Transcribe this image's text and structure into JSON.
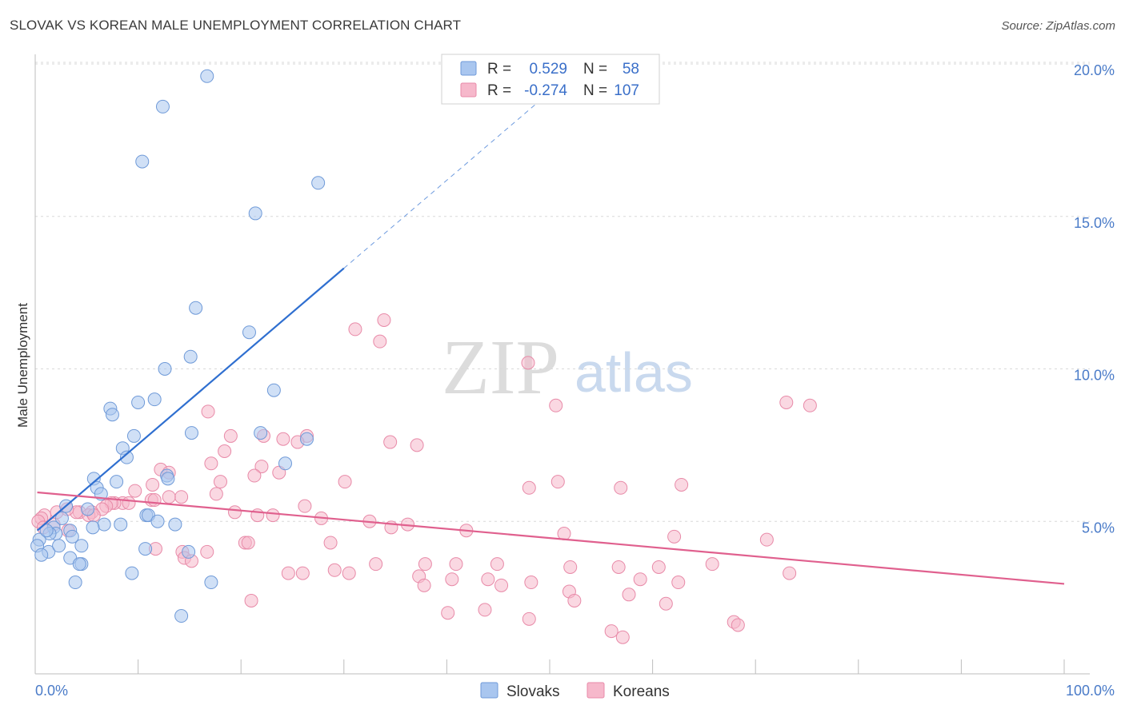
{
  "title": "SLOVAK VS KOREAN MALE UNEMPLOYMENT CORRELATION CHART",
  "source": "Source: ZipAtlas.com",
  "watermark": {
    "zip": "ZIP",
    "atlas": "atlas"
  },
  "legend": {
    "r_label": "R =",
    "n_label": "N =",
    "rows": [
      {
        "name": "Slovaks",
        "r": "0.529",
        "n": "58"
      },
      {
        "name": "Koreans",
        "r": "-0.274",
        "n": "107"
      }
    ]
  },
  "colors": {
    "slovaks_fill": "#a9c6ef",
    "slovaks_stroke": "#6f9ad8",
    "slovaks_line": "#2f6fd0",
    "koreans_fill": "#f6b8cb",
    "koreans_stroke": "#e88aa8",
    "koreans_line": "#e0608e",
    "grid": "#d9d9d9",
    "axis": "#bdbdbd",
    "tick_text": "#4a7bc8"
  },
  "chart_data": {
    "type": "scatter",
    "title": "SLOVAK VS KOREAN MALE UNEMPLOYMENT CORRELATION CHART",
    "xlabel": "",
    "ylabel": "Male Unemployment",
    "xlim": [
      0,
      100
    ],
    "ylim": [
      0,
      20
    ],
    "x_tick_labels": [
      "0.0%",
      "100.0%"
    ],
    "y_ticks": [
      {
        "value": 5,
        "label": "5.0%"
      },
      {
        "value": 10,
        "label": "10.0%"
      },
      {
        "value": 15,
        "label": "15.0%"
      },
      {
        "value": 20,
        "label": "20.0%"
      }
    ],
    "series": [
      {
        "name": "Slovaks",
        "r": 0.529,
        "n": 58,
        "trend": {
          "x0": 0.2,
          "y0": 4.7,
          "x1": 30,
          "y1": 13.3,
          "dash_to_x": 50
        },
        "points": [
          [
            16.7,
            19.6
          ],
          [
            12.4,
            18.6
          ],
          [
            10.4,
            16.8
          ],
          [
            27.5,
            16.1
          ],
          [
            21.4,
            15.1
          ],
          [
            15.6,
            12.0
          ],
          [
            20.8,
            11.2
          ],
          [
            15.1,
            10.4
          ],
          [
            12.6,
            10.0
          ],
          [
            23.2,
            9.3
          ],
          [
            11.6,
            9.0
          ],
          [
            10.0,
            8.9
          ],
          [
            7.3,
            8.7
          ],
          [
            7.5,
            8.5
          ],
          [
            15.2,
            7.9
          ],
          [
            21.9,
            7.9
          ],
          [
            26.4,
            7.7
          ],
          [
            9.6,
            7.8
          ],
          [
            8.5,
            7.4
          ],
          [
            8.9,
            7.1
          ],
          [
            24.3,
            6.9
          ],
          [
            12.8,
            6.5
          ],
          [
            12.9,
            6.4
          ],
          [
            5.7,
            6.4
          ],
          [
            7.9,
            6.3
          ],
          [
            6.0,
            6.1
          ],
          [
            6.4,
            5.9
          ],
          [
            3.0,
            5.5
          ],
          [
            5.1,
            5.4
          ],
          [
            2.6,
            5.1
          ],
          [
            10.8,
            5.2
          ],
          [
            11.0,
            5.2
          ],
          [
            11.9,
            5.0
          ],
          [
            13.6,
            4.9
          ],
          [
            6.7,
            4.9
          ],
          [
            8.3,
            4.9
          ],
          [
            1.8,
            4.8
          ],
          [
            3.4,
            4.7
          ],
          [
            2.0,
            4.6
          ],
          [
            3.6,
            4.5
          ],
          [
            1.4,
            4.6
          ],
          [
            5.6,
            4.8
          ],
          [
            0.4,
            4.4
          ],
          [
            0.2,
            4.2
          ],
          [
            1.3,
            4.0
          ],
          [
            2.3,
            4.2
          ],
          [
            4.5,
            4.2
          ],
          [
            14.9,
            4.0
          ],
          [
            10.7,
            4.1
          ],
          [
            3.4,
            3.8
          ],
          [
            4.5,
            3.6
          ],
          [
            0.6,
            3.9
          ],
          [
            4.3,
            3.6
          ],
          [
            9.4,
            3.3
          ],
          [
            3.9,
            3.0
          ],
          [
            17.1,
            3.0
          ],
          [
            14.2,
            1.9
          ],
          [
            1.1,
            4.7
          ]
        ]
      },
      {
        "name": "Koreans",
        "r": -0.274,
        "n": 107,
        "trend": {
          "x0": 0.2,
          "y0": 5.95,
          "x1": 100,
          "y1": 2.95
        },
        "points": [
          [
            33.9,
            11.6
          ],
          [
            31.1,
            11.3
          ],
          [
            33.5,
            10.9
          ],
          [
            47.9,
            10.2
          ],
          [
            50.6,
            8.8
          ],
          [
            73.0,
            8.9
          ],
          [
            75.3,
            8.8
          ],
          [
            16.8,
            8.6
          ],
          [
            19.0,
            7.8
          ],
          [
            22.2,
            7.8
          ],
          [
            26.4,
            7.8
          ],
          [
            24.1,
            7.7
          ],
          [
            25.5,
            7.6
          ],
          [
            34.5,
            7.6
          ],
          [
            37.1,
            7.5
          ],
          [
            18.4,
            7.3
          ],
          [
            17.1,
            6.9
          ],
          [
            22.0,
            6.8
          ],
          [
            12.2,
            6.7
          ],
          [
            13.0,
            6.6
          ],
          [
            23.7,
            6.6
          ],
          [
            21.3,
            6.5
          ],
          [
            18.0,
            6.3
          ],
          [
            11.4,
            6.2
          ],
          [
            30.1,
            6.3
          ],
          [
            50.8,
            6.3
          ],
          [
            62.8,
            6.2
          ],
          [
            48.0,
            6.1
          ],
          [
            56.9,
            6.1
          ],
          [
            9.7,
            6.0
          ],
          [
            14.2,
            5.8
          ],
          [
            17.6,
            5.9
          ],
          [
            13.0,
            5.8
          ],
          [
            11.3,
            5.7
          ],
          [
            11.6,
            5.7
          ],
          [
            8.5,
            5.6
          ],
          [
            9.1,
            5.6
          ],
          [
            7.7,
            5.6
          ],
          [
            7.4,
            5.6
          ],
          [
            6.9,
            5.5
          ],
          [
            6.5,
            5.4
          ],
          [
            5.5,
            5.3
          ],
          [
            4.3,
            5.3
          ],
          [
            4.0,
            5.3
          ],
          [
            5.2,
            5.2
          ],
          [
            5.7,
            5.2
          ],
          [
            3.1,
            5.4
          ],
          [
            2.1,
            5.3
          ],
          [
            0.9,
            5.2
          ],
          [
            0.6,
            5.1
          ],
          [
            0.3,
            5.0
          ],
          [
            0.8,
            4.8
          ],
          [
            1.8,
            4.9
          ],
          [
            3.2,
            4.7
          ],
          [
            26.2,
            5.5
          ],
          [
            19.4,
            5.3
          ],
          [
            21.6,
            5.2
          ],
          [
            23.1,
            5.2
          ],
          [
            27.8,
            5.1
          ],
          [
            32.5,
            5.0
          ],
          [
            36.2,
            4.9
          ],
          [
            34.6,
            4.8
          ],
          [
            41.9,
            4.7
          ],
          [
            51.4,
            4.6
          ],
          [
            62.1,
            4.5
          ],
          [
            71.1,
            4.4
          ],
          [
            20.4,
            4.3
          ],
          [
            20.7,
            4.3
          ],
          [
            16.7,
            4.0
          ],
          [
            14.3,
            4.0
          ],
          [
            11.7,
            4.1
          ],
          [
            28.7,
            4.3
          ],
          [
            33.1,
            3.6
          ],
          [
            37.9,
            3.6
          ],
          [
            40.9,
            3.6
          ],
          [
            44.9,
            3.6
          ],
          [
            52.0,
            3.5
          ],
          [
            56.7,
            3.5
          ],
          [
            60.6,
            3.5
          ],
          [
            65.8,
            3.6
          ],
          [
            14.5,
            3.8
          ],
          [
            15.2,
            3.7
          ],
          [
            24.6,
            3.3
          ],
          [
            26.0,
            3.3
          ],
          [
            29.1,
            3.4
          ],
          [
            30.5,
            3.3
          ],
          [
            37.3,
            3.2
          ],
          [
            40.5,
            3.1
          ],
          [
            44.0,
            3.1
          ],
          [
            48.2,
            3.0
          ],
          [
            58.8,
            3.1
          ],
          [
            62.5,
            3.0
          ],
          [
            73.3,
            3.3
          ],
          [
            37.8,
            2.9
          ],
          [
            45.3,
            2.9
          ],
          [
            51.9,
            2.7
          ],
          [
            57.7,
            2.6
          ],
          [
            52.4,
            2.4
          ],
          [
            61.3,
            2.3
          ],
          [
            21.0,
            2.4
          ],
          [
            43.7,
            2.1
          ],
          [
            40.1,
            2.0
          ],
          [
            48.0,
            1.8
          ],
          [
            56.0,
            1.4
          ],
          [
            57.1,
            1.2
          ],
          [
            67.9,
            1.7
          ],
          [
            68.3,
            1.6
          ]
        ]
      }
    ],
    "legend_position": "top-center"
  }
}
